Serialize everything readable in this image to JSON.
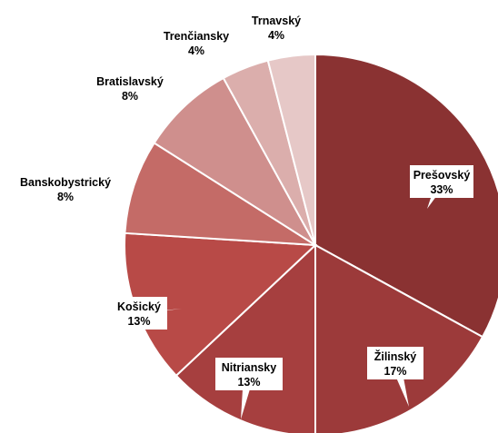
{
  "chart_data": {
    "type": "pie",
    "categories": [
      "Prešovský",
      "Žilinský",
      "Nitriansky",
      "Košický",
      "Banskobystrický",
      "Bratislavský",
      "Trenčiansky",
      "Trnavský"
    ],
    "values": [
      33,
      17,
      13,
      13,
      8,
      8,
      4,
      4
    ],
    "value_labels": [
      "33%",
      "17%",
      "13%",
      "13%",
      "8%",
      "8%",
      "4%",
      "4%"
    ],
    "colors": [
      "#8a3232",
      "#9c3a3a",
      "#a63f3f",
      "#b84a47",
      "#c46b67",
      "#cf8f8d",
      "#dbaeac",
      "#e6c8c7"
    ]
  }
}
